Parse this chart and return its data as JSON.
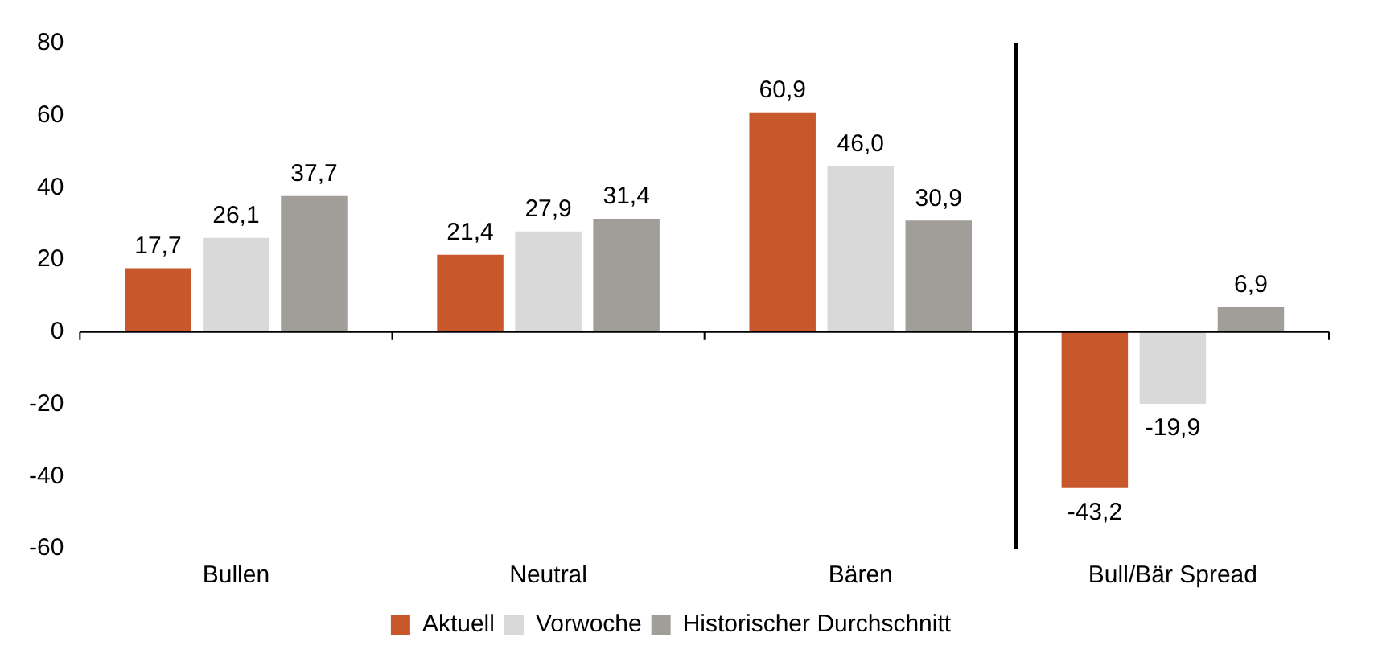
{
  "chart_data": {
    "type": "bar",
    "categories": [
      "Bullen",
      "Neutral",
      "Bären",
      "Bull/Bär Spread"
    ],
    "series": [
      {
        "name": "Aktuell",
        "color": "#c9572c",
        "values": [
          17.7,
          21.4,
          60.9,
          -43.2
        ],
        "value_labels": [
          "17,7",
          "21,4",
          "60,9",
          "-43,2"
        ]
      },
      {
        "name": "Vorwoche",
        "color": "#d9d9d9",
        "values": [
          26.1,
          27.9,
          46.0,
          -19.9
        ],
        "value_labels": [
          "26,1",
          "27,9",
          "46,0",
          "-19,9"
        ]
      },
      {
        "name": "Historischer Durchschnitt",
        "color": "#a19d99",
        "values": [
          37.7,
          31.4,
          30.9,
          6.9
        ],
        "value_labels": [
          "37,7",
          "31,4",
          "30,9",
          "6,9"
        ]
      }
    ],
    "ylim": [
      -60,
      80
    ],
    "yticks": [
      -60,
      -40,
      -20,
      0,
      20,
      40,
      60,
      80
    ],
    "legend": "bottom"
  }
}
